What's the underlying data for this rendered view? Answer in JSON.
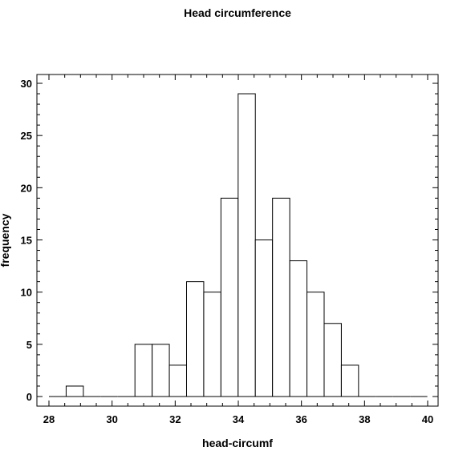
{
  "chart_data": {
    "type": "bar",
    "title": "Head circumference",
    "xlabel": "head-circumf",
    "ylabel": "frequency",
    "xlim": [
      28,
      40
    ],
    "ylim": [
      0,
      30
    ],
    "x_ticks": [
      28,
      30,
      32,
      34,
      36,
      38,
      40
    ],
    "y_ticks": [
      0,
      5,
      10,
      15,
      20,
      25,
      30
    ],
    "bin_width": 0.545,
    "bins": [
      {
        "start": 28.0,
        "count": 0
      },
      {
        "start": 28.545,
        "count": 1
      },
      {
        "start": 29.09,
        "count": 0
      },
      {
        "start": 29.635,
        "count": 0
      },
      {
        "start": 30.18,
        "count": 0
      },
      {
        "start": 30.725,
        "count": 5
      },
      {
        "start": 31.27,
        "count": 5
      },
      {
        "start": 31.815,
        "count": 3
      },
      {
        "start": 32.36,
        "count": 11
      },
      {
        "start": 32.905,
        "count": 10
      },
      {
        "start": 33.45,
        "count": 19
      },
      {
        "start": 33.995,
        "count": 29
      },
      {
        "start": 34.54,
        "count": 15
      },
      {
        "start": 35.085,
        "count": 19
      },
      {
        "start": 35.63,
        "count": 13
      },
      {
        "start": 36.175,
        "count": 10
      },
      {
        "start": 36.72,
        "count": 7
      },
      {
        "start": 37.265,
        "count": 3
      },
      {
        "start": 37.81,
        "count": 0
      },
      {
        "start": 38.355,
        "count": 0
      },
      {
        "start": 38.9,
        "count": 0
      },
      {
        "start": 39.445,
        "count": 0
      }
    ],
    "grid": false,
    "legend": "none"
  }
}
